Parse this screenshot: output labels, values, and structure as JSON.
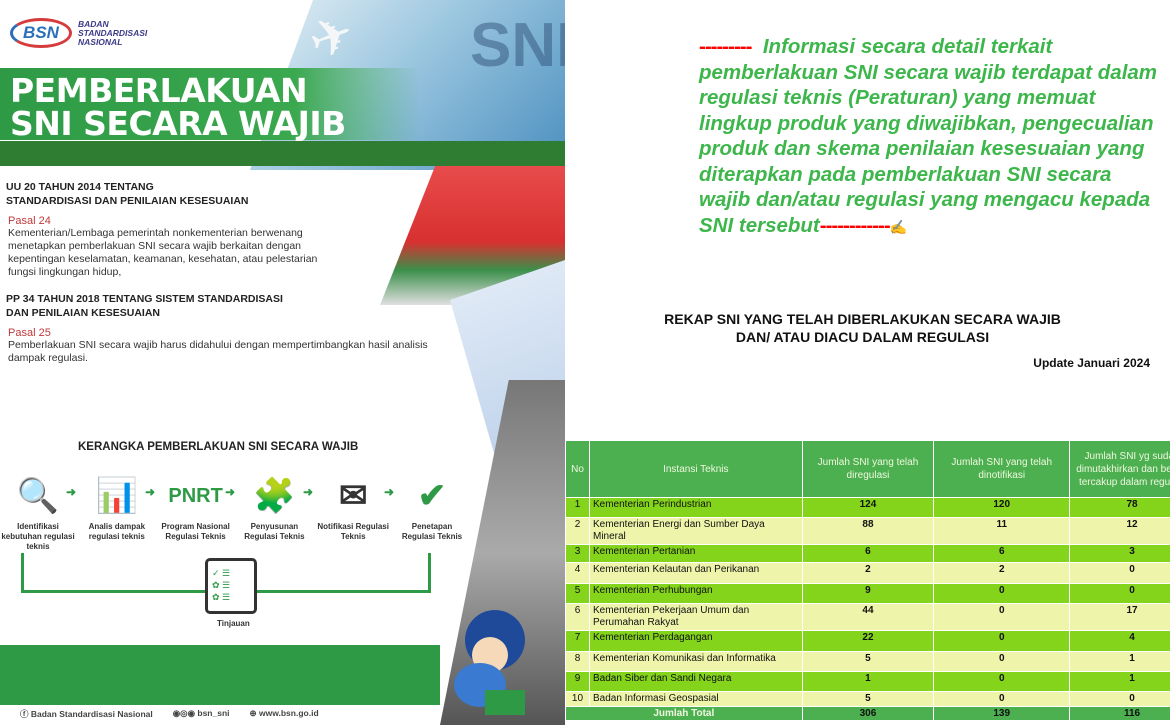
{
  "poster": {
    "logo": {
      "abbr": "BSN",
      "name": "BADAN STANDARDISASI NASIONAL"
    },
    "watermark": "SNI",
    "headline": [
      "PEMBERLAKUAN",
      "SNI SECARA WAJIB"
    ],
    "laws": [
      {
        "title": [
          "UU 20 TAHUN 2014 TENTANG",
          "STANDARDISASI DAN PENILAIAN KESESUAIAN"
        ],
        "pasal": "Pasal 24",
        "text": "Kementerian/Lembaga pemerintah nonkementerian berwenang menetapkan pemberlakuan SNI secara wajib berkaitan dengan kepentingan keselamatan, keamanan, kesehatan, atau pelestarian fungsi lingkungan hidup,"
      },
      {
        "title": [
          "PP 34 TAHUN 2018 TENTANG SISTEM STANDARDISASI",
          "DAN PENILAIAN KESESUAIAN"
        ],
        "pasal": "Pasal 25",
        "text": "Pemberlakuan SNI secara wajib harus didahului dengan mempertimbangkan hasil analisis dampak regulasi."
      }
    ],
    "framework_title": "KERANGKA PEMBERLAKUAN SNI SECARA WAJIB",
    "steps": [
      {
        "icon": "puzzle-search-icon",
        "label": "Identifikasi kebutuhan regulasi teknis"
      },
      {
        "icon": "bar-chart-icon",
        "label": "Analis dampak regulasi teknis"
      },
      {
        "icon": "people-icon",
        "badge": "PNRT",
        "label": "Program Nasional Regulasi Teknis"
      },
      {
        "icon": "puzzle-icon",
        "label": "Penyusunan Regulasi Teknis"
      },
      {
        "icon": "envelope-icon",
        "label": "Notifikasi Regulasi Teknis"
      },
      {
        "icon": "check-circle-icon",
        "label": "Penetapan Regulasi Teknis"
      }
    ],
    "review_label": "Tinjauan",
    "footer": {
      "facebook": "Badan Standardisasi Nasional",
      "social": "bsn_sni",
      "web": "www.bsn.go.id"
    }
  },
  "info": {
    "dash_start": "---------",
    "text": "Informasi secara detail terkait pemberlakuan SNI secara wajib  terdapat dalam regulasi teknis (Peraturan) yang memuat lingkup produk yang diwajibkan, pengecualian produk dan skema penilaian kesesuaian yang diterapkan pada pemberlakuan SNI secara wajib  dan/atau regulasi yang mengacu kepada SNI tersebut",
    "dash_end": "------------",
    "hand_icon": "pointing-hand-icon"
  },
  "recap": {
    "title": [
      "REKAP SNI YANG TELAH DIBERLAKUKAN SECARA WAJIB",
      "DAN/ ATAU DIACU DALAM REGULASI"
    ],
    "update": "Update Januari 2024",
    "headers": [
      "No",
      "Instansi Teknis",
      "Jumlah SNI yang telah diregulasi",
      "Jumlah SNI yang telah dinotifikasi",
      "Jumlah SNI yg sudah dimutakhirkan dan belum tercakup dalam regulasi"
    ],
    "rows": [
      [
        "1",
        "Kementerian Perindustrian",
        "124",
        "120",
        "78"
      ],
      [
        "2",
        "Kementerian Energi dan Sumber Daya Mineral",
        "88",
        "11",
        "12"
      ],
      [
        "3",
        "Kementerian Pertanian",
        "6",
        "6",
        "3"
      ],
      [
        "4",
        "Kementerian Kelautan dan Perikanan",
        "2",
        "2",
        "0"
      ],
      [
        "5",
        "Kementerian Perhubungan",
        "9",
        "0",
        "0"
      ],
      [
        "6",
        "Kementerian Pekerjaan Umum dan Perumahan Rakyat",
        "44",
        "0",
        "17"
      ],
      [
        "7",
        "Kementerian Perdagangan",
        "22",
        "0",
        "4"
      ],
      [
        "8",
        "Kementerian Komunikasi dan Informatika",
        "5",
        "0",
        "1"
      ],
      [
        "9",
        "Badan Siber dan Sandi Negara",
        "1",
        "0",
        "1"
      ],
      [
        "10",
        "Badan Informasi Geospasial",
        "5",
        "0",
        "0"
      ]
    ],
    "total": [
      "Jumlah Total",
      "306",
      "139",
      "116"
    ]
  },
  "colors": {
    "green": "#2e9a46",
    "info_green": "#3db64b",
    "row_odd": "#84d41c",
    "row_even": "#eef5aa",
    "header": "#4cb050",
    "accent_red": "#ff0000"
  }
}
